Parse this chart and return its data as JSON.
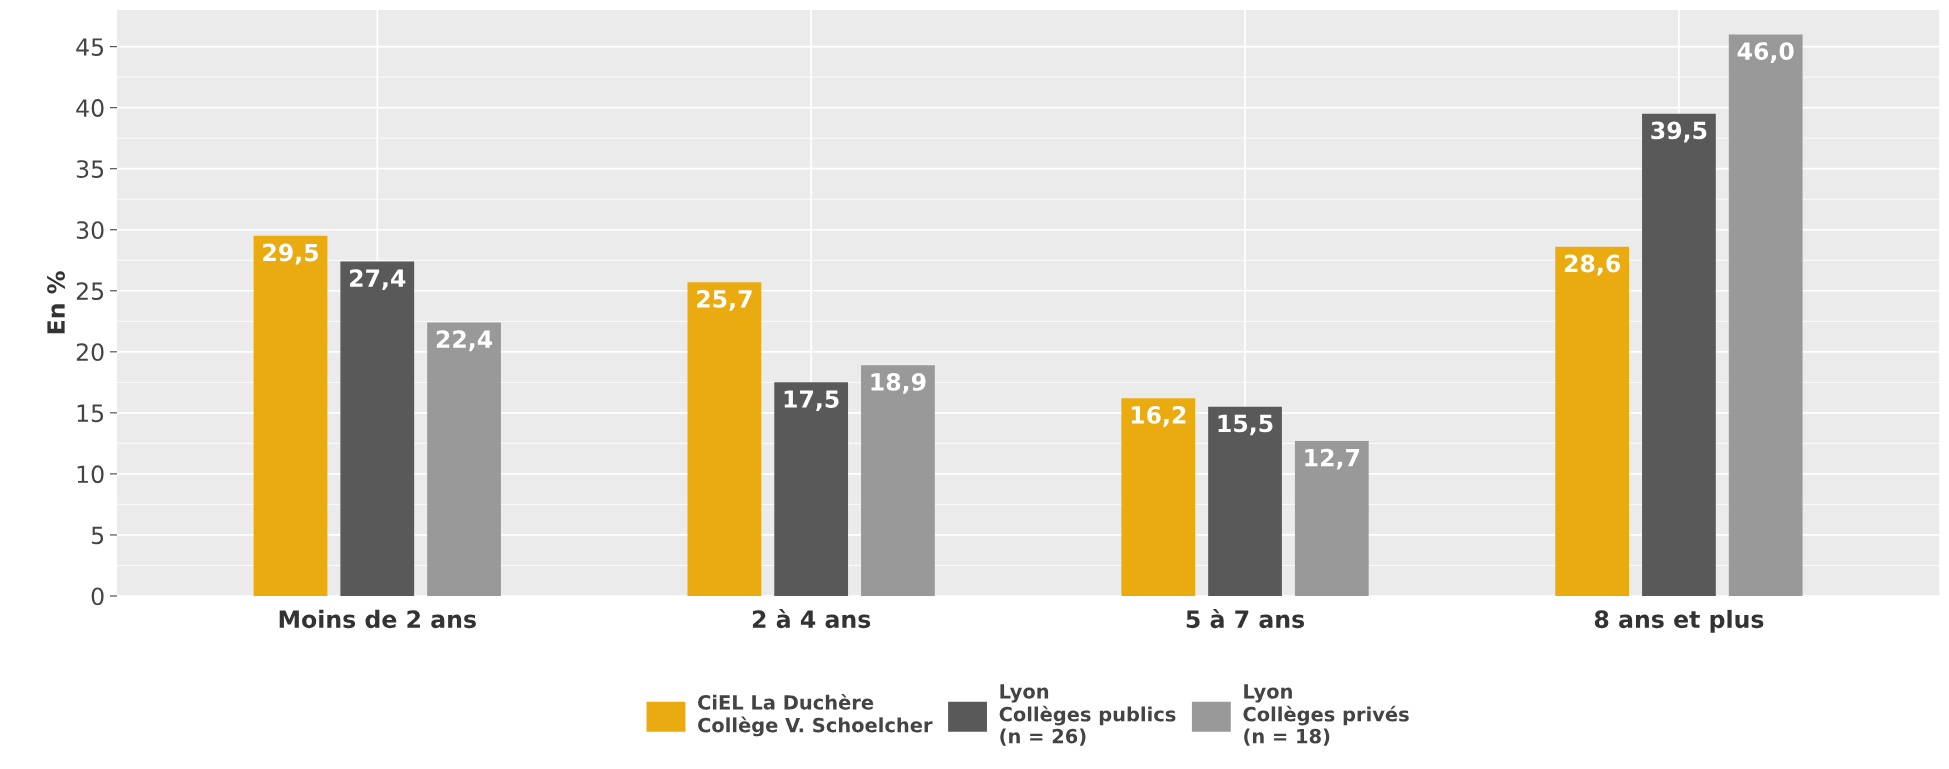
{
  "chart_data": {
    "type": "bar",
    "ylabel": "En %",
    "categories": [
      "Moins de 2 ans",
      "2 à 4 ans",
      "5 à 7 ans",
      "8 ans et plus"
    ],
    "series": [
      {
        "name": "CiEL La Duchère\nCollège V. Schoelcher",
        "color": "#eaab11",
        "values": [
          29.5,
          25.7,
          16.2,
          28.6
        ],
        "value_labels": [
          "29,5",
          "25,7",
          "16,2",
          "28,6"
        ]
      },
      {
        "name": "Lyon\nCollèges publics\n(n = 26)",
        "color": "#595959",
        "values": [
          27.4,
          17.5,
          15.5,
          39.5
        ],
        "value_labels": [
          "27,4",
          "17,5",
          "15,5",
          "39,5"
        ]
      },
      {
        "name": "Lyon\nCollèges privés\n(n = 18)",
        "color": "#999999",
        "values": [
          22.4,
          18.9,
          12.7,
          46.0
        ],
        "value_labels": [
          "22,4",
          "18,9",
          "12,7",
          "46,0"
        ]
      }
    ],
    "ylim": [
      0,
      48
    ],
    "yticks": [
      0,
      5,
      10,
      15,
      20,
      25,
      30,
      35,
      40,
      45
    ],
    "grid": true,
    "legend": "bottom"
  }
}
